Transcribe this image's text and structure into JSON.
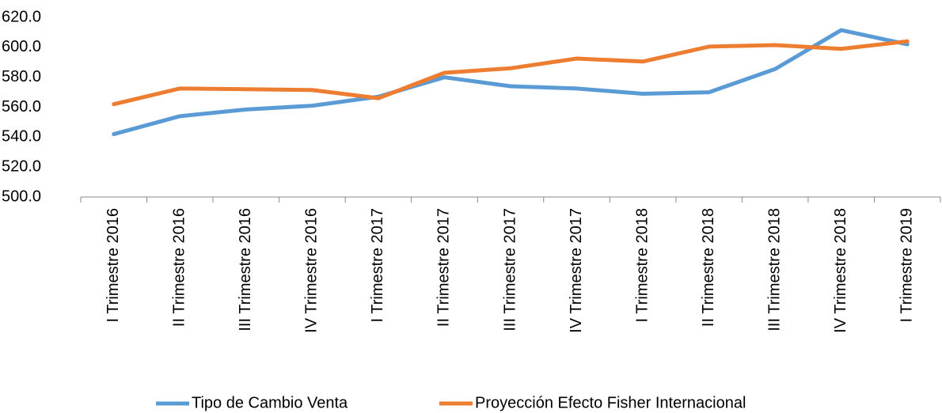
{
  "chart_data": {
    "type": "line",
    "categories": [
      "I Trimestre 2016",
      "II Trimestre 2016",
      "III Trimestre 2016",
      "IV Trimestre 2016",
      "I Trimestre 2017",
      "II Trimestre 2017",
      "III Trimestre 2017",
      "IV Trimestre 2017",
      "I Trimestre 2018",
      "II Trimestre 2018",
      "III Trimestre 2018",
      "IV Trimestre 2018",
      "I Trimestre 2019"
    ],
    "series": [
      {
        "name": "Tipo de Cambio Venta",
        "color": "#5b9bd5",
        "values": [
          542,
          554,
          558.5,
          561,
          567,
          580,
          574,
          572.5,
          569,
          570,
          585.5,
          611.5,
          602
        ]
      },
      {
        "name": "Proyección Efecto Fisher Internacional",
        "color": "#ed7d31",
        "values": [
          562,
          572.5,
          572,
          571.5,
          566,
          583,
          586,
          592.5,
          590.5,
          600.5,
          601.5,
          599,
          604
        ]
      }
    ],
    "ylim": [
      500,
      620
    ],
    "yticks": [
      {
        "value": 500,
        "label": "500.0"
      },
      {
        "value": 520,
        "label": "520.0"
      },
      {
        "value": 540,
        "label": "540.0"
      },
      {
        "value": 560,
        "label": "560.0"
      },
      {
        "value": 580,
        "label": "580.0"
      },
      {
        "value": 600,
        "label": "600.0"
      },
      {
        "value": 620,
        "label": "620.0"
      }
    ],
    "grid": false,
    "legend": "bottom"
  }
}
